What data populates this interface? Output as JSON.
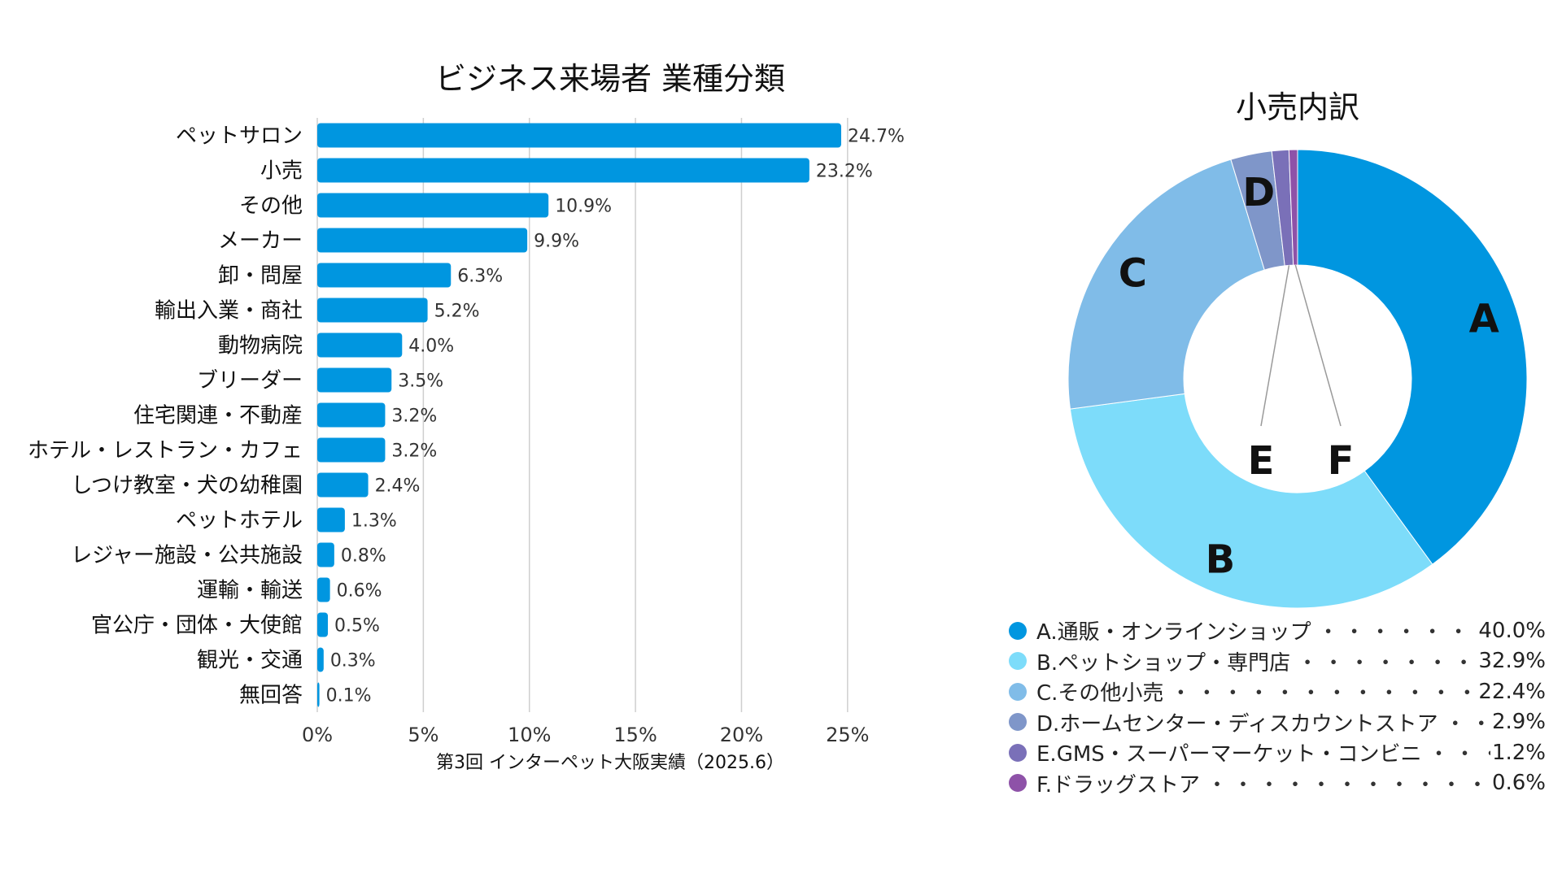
{
  "chart_data": [
    {
      "type": "bar",
      "orientation": "horizontal",
      "title": "ビジネス来場者 業種分類",
      "xlabel": "第3回 インターペット大阪実績（2025.6）",
      "ylabel": "",
      "xlim": [
        0,
        27.5
      ],
      "grid": true,
      "color": "#0096e0",
      "ticks": [
        "0%",
        "5%",
        "10%",
        "15%",
        "20%",
        "25%"
      ],
      "tick_values": [
        0,
        5,
        10,
        15,
        20,
        25
      ],
      "categories": [
        "ペットサロン",
        "小売",
        "その他",
        "メーカー",
        "卸・問屋",
        "輸出入業・商社",
        "動物病院",
        "ブリーダー",
        "住宅関連・不動産",
        "ホテル・レストラン・カフェ",
        "しつけ教室・犬の幼稚園",
        "ペットホテル",
        "レジャー施設・公共施設",
        "運輸・輸送",
        "官公庁・団体・大使館",
        "観光・交通",
        "無回答"
      ],
      "values": [
        24.7,
        23.2,
        10.9,
        9.9,
        6.3,
        5.2,
        4.0,
        3.5,
        3.2,
        3.2,
        2.4,
        1.3,
        0.8,
        0.6,
        0.5,
        0.3,
        0.1
      ],
      "value_labels": [
        "24.7%",
        "23.2%",
        "10.9%",
        "9.9%",
        "6.3%",
        "5.2%",
        "4.0%",
        "3.5%",
        "3.2%",
        "3.2%",
        "2.4%",
        "1.3%",
        "0.8%",
        "0.6%",
        "0.5%",
        "0.3%",
        "0.1%"
      ]
    },
    {
      "type": "pie",
      "style": "donut",
      "title": "小売内訳",
      "segments": [
        {
          "label": "A",
          "legend": "A.通販・オンラインショップ",
          "value": 40.0,
          "value_label": "40.0%",
          "color": "#0096e0"
        },
        {
          "label": "B",
          "legend": "B.ペットショップ・専門店",
          "value": 32.9,
          "value_label": "32.9%",
          "color": "#7ddcfa"
        },
        {
          "label": "C",
          "legend": "C.その他小売",
          "value": 22.4,
          "value_label": "22.4%",
          "color": "#80bce8"
        },
        {
          "label": "D",
          "legend": "D.ホームセンター・ディスカウントストア",
          "value": 2.9,
          "value_label": "2.9%",
          "color": "#7f96c9"
        },
        {
          "label": "E",
          "legend": "E.GMS・スーパーマーケット・コンビニ",
          "value": 1.2,
          "value_label": "1.2%",
          "color": "#7a70b8"
        },
        {
          "label": "F",
          "legend": "F.ドラッグストア",
          "value": 0.6,
          "value_label": "0.6%",
          "color": "#8e52a8"
        }
      ],
      "legend_position": "bottom",
      "legend_leader": "・・・・・・・・・・・・・・・・・・・・"
    }
  ]
}
